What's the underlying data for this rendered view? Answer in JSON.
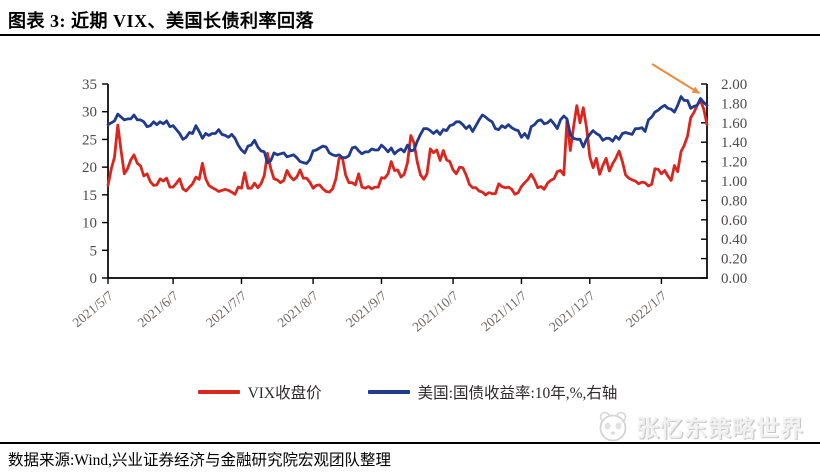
{
  "header": {
    "title": "图表 3: 近期 VIX、美国长债利率回落"
  },
  "footer": {
    "source": "数据来源:Wind,兴业证券经济与金融研究院宏观团队整理"
  },
  "watermark": {
    "text": "张忆东策略世界",
    "logo": "panda-face"
  },
  "chart_data": {
    "type": "line",
    "title": "近期VIX、美国长债利率回落",
    "grid": false,
    "legend_position": "bottom",
    "x_axis": {
      "tick_labels": [
        "2021/5/7",
        "2021/6/7",
        "2021/7/7",
        "2021/8/7",
        "2021/9/7",
        "2021/10/7",
        "2021/11/7",
        "2021/12/7",
        "2022/1/7"
      ],
      "tick_indices": [
        0,
        20,
        41,
        63,
        84,
        106,
        127,
        148,
        170
      ]
    },
    "left_axis": {
      "min": 0,
      "max": 35,
      "step": 5,
      "tick_labels": [
        "35",
        "30",
        "25",
        "20",
        "15",
        "10",
        "5",
        "0"
      ]
    },
    "right_axis": {
      "min": 0,
      "max": 2.0,
      "step": 0.2,
      "tick_labels": [
        "2.00",
        "1.80",
        "1.60",
        "1.40",
        "1.20",
        "1.00",
        "0.80",
        "0.60",
        "0.40",
        "0.20",
        "0.00"
      ]
    },
    "annotation_arrow": {
      "color": "#EF8C3F",
      "points_at": "end of both series"
    },
    "series": [
      {
        "name": "VIX收盘价",
        "axis": "left",
        "color": "#D9261F",
        "values": [
          16.7,
          19.7,
          21.8,
          27.6,
          23.1,
          18.8,
          19.7,
          21.3,
          22.2,
          20.7,
          20.2,
          18.4,
          18.8,
          17.4,
          16.7,
          16.8,
          17.9,
          17.5,
          18.0,
          16.4,
          16.4,
          17.1,
          17.9,
          16.1,
          15.7,
          16.4,
          17.0,
          18.2,
          17.8,
          20.7,
          17.9,
          16.7,
          16.3,
          16.0,
          15.6,
          15.8,
          16.0,
          15.8,
          15.5,
          15.1,
          16.4,
          16.2,
          19.0,
          16.2,
          16.2,
          17.1,
          16.3,
          17.0,
          18.5,
          22.5,
          19.7,
          17.9,
          17.7,
          17.2,
          17.6,
          19.4,
          18.3,
          17.7,
          18.2,
          19.5,
          18.0,
          18.0,
          17.3,
          16.2,
          16.7,
          16.8,
          16.1,
          15.6,
          15.5,
          16.1,
          17.9,
          21.6,
          21.7,
          18.6,
          17.2,
          17.2,
          16.8,
          18.8,
          16.4,
          16.2,
          16.5,
          16.1,
          16.4,
          16.4,
          18.1,
          18.0,
          18.8,
          21.0,
          19.4,
          19.5,
          18.2,
          18.7,
          20.8,
          25.7,
          24.4,
          20.9,
          18.6,
          17.8,
          18.8,
          23.3,
          22.6,
          23.1,
          21.2,
          23.0,
          21.3,
          21.0,
          19.5,
          18.8,
          20.0,
          19.9,
          18.6,
          16.9,
          16.3,
          16.3,
          15.7,
          15.5,
          15.0,
          15.4,
          15.2,
          15.2,
          17.0,
          16.5,
          16.3,
          16.4,
          16.0,
          15.1,
          15.4,
          16.5,
          17.2,
          17.8,
          18.7,
          17.7,
          16.3,
          16.5,
          16.0,
          17.1,
          17.6,
          17.9,
          19.2,
          19.4,
          18.6,
          28.6,
          23.0,
          27.2,
          31.1,
          28.0,
          30.7,
          27.2,
          21.9,
          19.9,
          21.6,
          18.7,
          20.3,
          21.6,
          19.3,
          20.6,
          21.6,
          22.9,
          21.0,
          18.6,
          18.0,
          17.7,
          17.5,
          17.0,
          17.3,
          17.2,
          16.6,
          16.9,
          19.7,
          19.6,
          18.8,
          19.4,
          18.4,
          17.6,
          20.3,
          19.2,
          22.8,
          23.9,
          25.6,
          28.9,
          29.9,
          31.2,
          32.0,
          30.5,
          27.7
        ]
      },
      {
        "name": "美国:国债收益率:10年,%,右轴",
        "axis": "right",
        "color": "#203A8C",
        "values": [
          1.58,
          1.6,
          1.62,
          1.69,
          1.66,
          1.63,
          1.64,
          1.64,
          1.68,
          1.63,
          1.63,
          1.61,
          1.56,
          1.57,
          1.61,
          1.58,
          1.61,
          1.59,
          1.62,
          1.56,
          1.57,
          1.53,
          1.49,
          1.43,
          1.45,
          1.5,
          1.49,
          1.57,
          1.51,
          1.44,
          1.49,
          1.47,
          1.49,
          1.49,
          1.53,
          1.48,
          1.47,
          1.45,
          1.48,
          1.44,
          1.37,
          1.32,
          1.29,
          1.36,
          1.37,
          1.42,
          1.35,
          1.31,
          1.3,
          1.19,
          1.21,
          1.29,
          1.27,
          1.28,
          1.29,
          1.25,
          1.26,
          1.27,
          1.24,
          1.2,
          1.19,
          1.18,
          1.22,
          1.31,
          1.32,
          1.34,
          1.36,
          1.35,
          1.29,
          1.27,
          1.26,
          1.27,
          1.24,
          1.24,
          1.26,
          1.34,
          1.35,
          1.31,
          1.28,
          1.3,
          1.3,
          1.33,
          1.32,
          1.32,
          1.37,
          1.34,
          1.3,
          1.34,
          1.28,
          1.31,
          1.33,
          1.3,
          1.37,
          1.31,
          1.32,
          1.41,
          1.48,
          1.54,
          1.54,
          1.52,
          1.49,
          1.52,
          1.48,
          1.53,
          1.52,
          1.57,
          1.58,
          1.61,
          1.61,
          1.58,
          1.54,
          1.57,
          1.51,
          1.57,
          1.63,
          1.68,
          1.66,
          1.63,
          1.61,
          1.54,
          1.53,
          1.57,
          1.55,
          1.58,
          1.55,
          1.53,
          1.52,
          1.45,
          1.49,
          1.44,
          1.56,
          1.58,
          1.62,
          1.63,
          1.59,
          1.6,
          1.63,
          1.59,
          1.54,
          1.63,
          1.67,
          1.64,
          1.48,
          1.44,
          1.43,
          1.43,
          1.35,
          1.43,
          1.48,
          1.52,
          1.49,
          1.47,
          1.42,
          1.44,
          1.44,
          1.41,
          1.46,
          1.43,
          1.49,
          1.5,
          1.49,
          1.48,
          1.54,
          1.54,
          1.55,
          1.51,
          1.63,
          1.66,
          1.71,
          1.73,
          1.76,
          1.78,
          1.75,
          1.74,
          1.71,
          1.78,
          1.87,
          1.83,
          1.83,
          1.75,
          1.77,
          1.78,
          1.85,
          1.81,
          1.78
        ]
      }
    ]
  }
}
